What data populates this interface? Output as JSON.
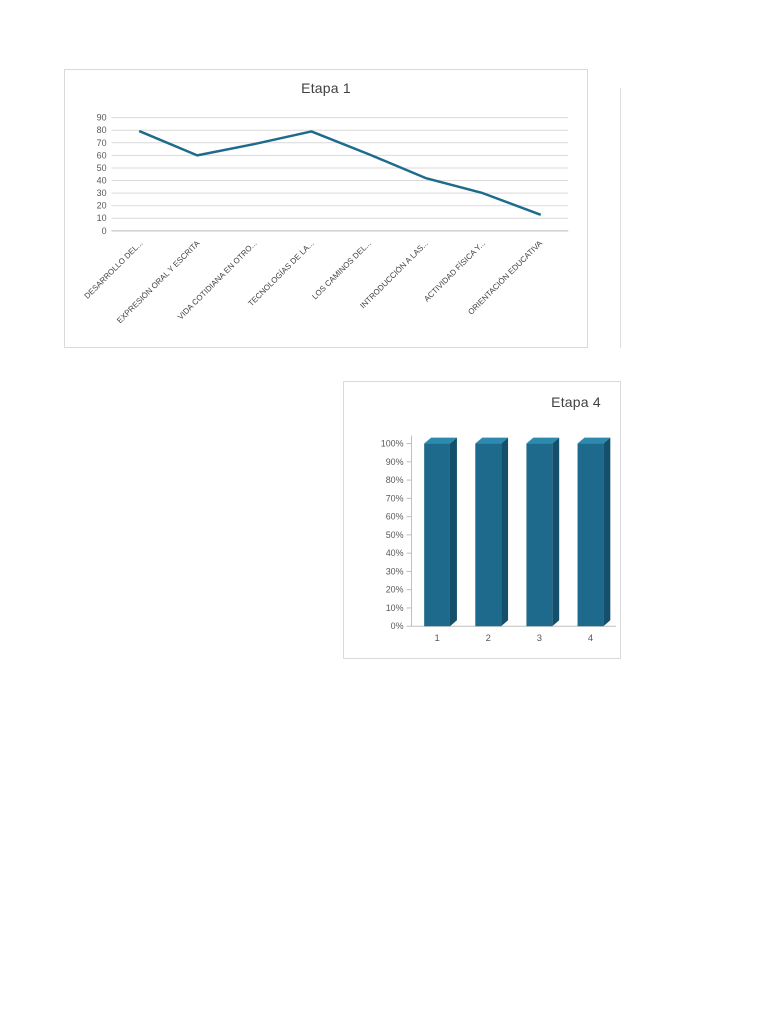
{
  "page": {
    "background": "#ffffff"
  },
  "chart_data": [
    {
      "type": "line",
      "title": "Etapa 1",
      "categories": [
        "DESARROLLO DEL...",
        "EXPRESIÓN ORAL Y ESCRITA",
        "VIDA COTIDIANA EN OTRO...",
        "TECNOLOGÍAS DE LA...",
        "LOS CAMINOS DEL...",
        "INTRODUCCIÓN A LAS...",
        "ACTIVIDAD FÍSICA Y...",
        "ORIENTACIÓN EDUCATIVA"
      ],
      "values": [
        79,
        60,
        69,
        79,
        61,
        42,
        30,
        13
      ],
      "ylim": [
        0,
        90
      ],
      "yticks": [
        "0",
        "10",
        "20",
        "30",
        "40",
        "50",
        "60",
        "70",
        "80",
        "90"
      ],
      "grid": true,
      "legend": "none",
      "line_color": "#1f6b8c",
      "gridline_color": "#d9d9d9",
      "axis_color": "#bfbfbf"
    },
    {
      "type": "bar",
      "title": "Etapa 4",
      "categories": [
        "1",
        "2",
        "3",
        "4"
      ],
      "values": [
        100,
        100,
        100,
        100
      ],
      "ylim": [
        0,
        100
      ],
      "yticks": [
        "0%",
        "10%",
        "20%",
        "30%",
        "40%",
        "50%",
        "60%",
        "70%",
        "80%",
        "90%",
        "100%"
      ],
      "grid": false,
      "legend": "none",
      "bar_style": "3d",
      "bar_color": "#1e6a8d",
      "bar_top_color": "#2d89ad",
      "bar_side_color": "#14506b",
      "axis_color": "#bfbfbf"
    }
  ]
}
